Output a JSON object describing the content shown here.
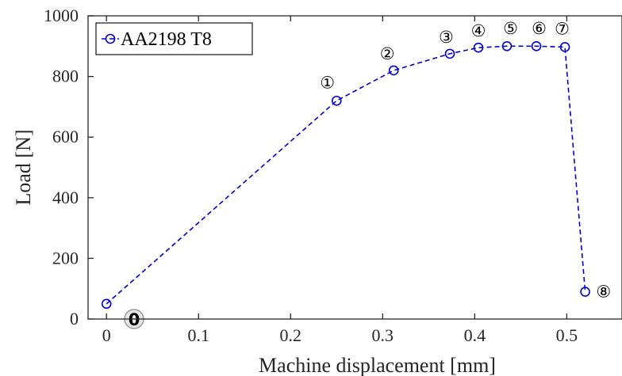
{
  "chart_data": {
    "type": "line",
    "xlabel": "Machine displacement [mm]",
    "ylabel": "Load [N]",
    "xlim": [
      -0.02,
      0.56
    ],
    "ylim": [
      0,
      1000
    ],
    "xticks": [
      0,
      0.1,
      0.2,
      0.3,
      0.4,
      0.5
    ],
    "xtick_labels": [
      "0",
      "0.1",
      "0.2",
      "0.3",
      "0.4",
      "0.5"
    ],
    "yticks": [
      0,
      200,
      400,
      600,
      800,
      1000
    ],
    "ytick_labels": [
      "0",
      "200",
      "400",
      "600",
      "800",
      "1000"
    ],
    "legend_position": "top-left",
    "series": [
      {
        "name": "AA2198 T8",
        "color": "#0000d0",
        "line_style": "dashed",
        "marker": "open-circle",
        "x": [
          0,
          0.25,
          0.312,
          0.373,
          0.404,
          0.435,
          0.467,
          0.498,
          0.52
        ],
        "y": [
          50,
          720,
          820,
          875,
          895,
          900,
          900,
          897,
          90
        ]
      }
    ],
    "point_labels": [
      {
        "point": 0,
        "text": "0",
        "style": "gray-circled",
        "dx": 0.03,
        "dy": -50
      },
      {
        "point": 1,
        "text": "①",
        "style": "circled",
        "dx": -0.01,
        "dy": 60
      },
      {
        "point": 2,
        "text": "②",
        "style": "circled",
        "dx": -0.007,
        "dy": 55
      },
      {
        "point": 3,
        "text": "③",
        "style": "circled",
        "dx": -0.004,
        "dy": 55
      },
      {
        "point": 4,
        "text": "④",
        "style": "circled",
        "dx": 0,
        "dy": 55
      },
      {
        "point": 5,
        "text": "⑤",
        "style": "circled",
        "dx": 0.004,
        "dy": 58
      },
      {
        "point": 6,
        "text": "⑥",
        "style": "circled",
        "dx": 0.003,
        "dy": 58
      },
      {
        "point": 7,
        "text": "⑦",
        "style": "circled",
        "dx": -0.003,
        "dy": 60
      },
      {
        "point": 8,
        "text": "⑧",
        "style": "circled",
        "dx": 0.02,
        "dy": 0
      }
    ]
  }
}
